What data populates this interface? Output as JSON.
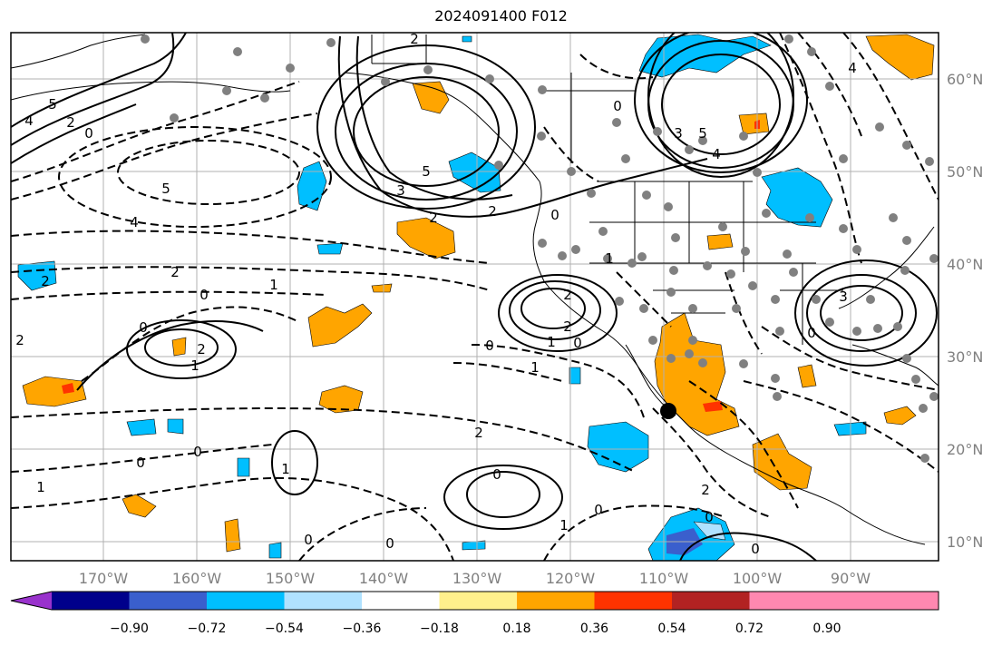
{
  "title": "2024091400 F012",
  "lon_labels": [
    "170°W",
    "160°W",
    "150°W",
    "140°W",
    "130°W",
    "120°W",
    "110°W",
    "100°W",
    "90°W"
  ],
  "lat_labels": [
    "60°N",
    "50°N",
    "40°N",
    "30°N",
    "20°N",
    "10°N"
  ],
  "colorbar": {
    "colors": [
      "#9932cc",
      "#00008b",
      "#3a5fcd",
      "#00bfff",
      "#b0e2ff",
      "#ffffff",
      "#fff08c",
      "#ffa500",
      "#ff3300",
      "#b22222",
      "#ff88b0"
    ],
    "tick_labels": [
      "−0.90",
      "−0.72",
      "−0.54",
      "−0.36",
      "−0.18",
      "0.18",
      "0.36",
      "0.54",
      "0.72",
      "0.90"
    ]
  },
  "contour_labels": [
    {
      "text": "2"
    },
    {
      "text": "5"
    },
    {
      "text": "4"
    },
    {
      "text": "2"
    },
    {
      "text": "0"
    },
    {
      "text": "5"
    },
    {
      "text": "4"
    },
    {
      "text": "2"
    },
    {
      "text": "2"
    },
    {
      "text": "0"
    },
    {
      "text": "1"
    },
    {
      "text": "2"
    },
    {
      "text": "0"
    },
    {
      "text": "2"
    },
    {
      "text": "1"
    },
    {
      "text": "0"
    },
    {
      "text": "0"
    },
    {
      "text": "1"
    },
    {
      "text": "1"
    },
    {
      "text": "2"
    },
    {
      "text": "0"
    },
    {
      "text": "0"
    },
    {
      "text": "5"
    },
    {
      "text": "3"
    },
    {
      "text": "2"
    },
    {
      "text": "2"
    },
    {
      "text": "2"
    },
    {
      "text": "1"
    },
    {
      "text": "0"
    },
    {
      "text": "0"
    },
    {
      "text": "1"
    },
    {
      "text": "2"
    },
    {
      "text": "0"
    },
    {
      "text": "1"
    },
    {
      "text": "0"
    },
    {
      "text": "0"
    },
    {
      "text": "2"
    },
    {
      "text": "0"
    },
    {
      "text": "0"
    },
    {
      "text": "1"
    },
    {
      "text": "3"
    },
    {
      "text": "0"
    },
    {
      "text": "5"
    },
    {
      "text": "3"
    },
    {
      "text": "4"
    },
    {
      "text": "0"
    },
    {
      "text": "4"
    }
  ]
}
